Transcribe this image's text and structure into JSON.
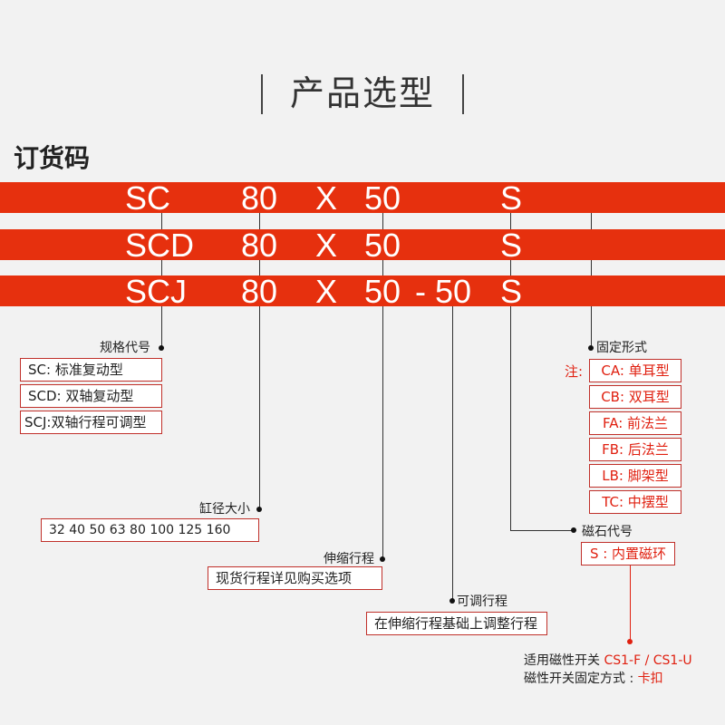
{
  "header": {
    "title": "产品选型",
    "subtitle": "订货码"
  },
  "code_rows": [
    {
      "model": "SC",
      "bore": "80",
      "x": "X",
      "stroke": "50",
      "adj": "",
      "magnet": "S"
    },
    {
      "model": "SCD",
      "bore": "80",
      "x": "X",
      "stroke": "50",
      "adj": "",
      "magnet": "S"
    },
    {
      "model": "SCJ",
      "bore": "80",
      "x": "X",
      "stroke": "50",
      "adj": "- 50",
      "magnet": "S"
    }
  ],
  "spec": {
    "label": "规格代号",
    "items": [
      "SC: 标准复动型",
      "SCD: 双轴复动型",
      "SCJ:双轴行程可调型"
    ]
  },
  "bore": {
    "label": "缸径大小",
    "values": "32  40  50  63  80  100  125  160"
  },
  "stroke": {
    "label": "伸缩行程",
    "value": "现货行程详见购买选项"
  },
  "adjustable": {
    "label": "可调行程",
    "value": "在伸缩行程基础上调整行程"
  },
  "mount": {
    "label": "固定形式",
    "note": "注:",
    "items": [
      "CA: 单耳型",
      "CB: 双耳型",
      "FA: 前法兰",
      "FB: 后法兰",
      "LB: 脚架型",
      "TC: 中摆型"
    ]
  },
  "magnet": {
    "label": "磁石代号",
    "value": "S : 内置磁环"
  },
  "switch": {
    "line1_prefix": "适用磁性开关 ",
    "line1_value": "CS1-F / CS1-U",
    "line2_prefix": "磁性开关固定方式 : ",
    "line2_value": "卡扣"
  },
  "colors": {
    "accent": "#e6300e",
    "box_border": "#c0302a",
    "red_text": "#e02010"
  }
}
